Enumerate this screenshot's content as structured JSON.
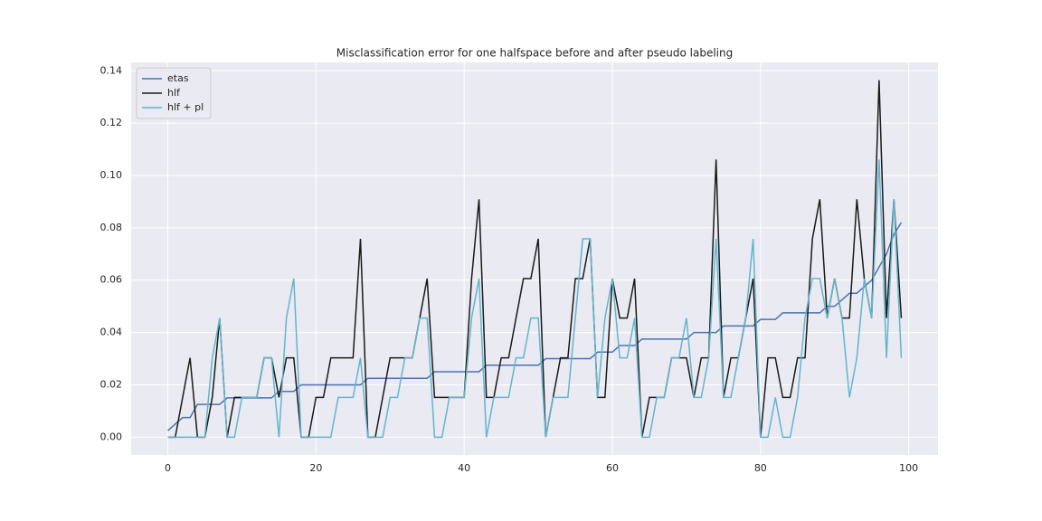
{
  "chart_data": {
    "type": "line",
    "title": "Misclassification error for one halfspace before and after pseudo labeling",
    "x": [
      0,
      1,
      2,
      3,
      4,
      5,
      6,
      7,
      8,
      9,
      10,
      11,
      12,
      13,
      14,
      15,
      16,
      17,
      18,
      19,
      20,
      21,
      22,
      23,
      24,
      25,
      26,
      27,
      28,
      29,
      30,
      31,
      32,
      33,
      34,
      35,
      36,
      37,
      38,
      39,
      40,
      41,
      42,
      43,
      44,
      45,
      46,
      47,
      48,
      49,
      50,
      51,
      52,
      53,
      54,
      55,
      56,
      57,
      58,
      59,
      60,
      61,
      62,
      63,
      64,
      65,
      66,
      67,
      68,
      69,
      70,
      71,
      72,
      73,
      74,
      75,
      76,
      77,
      78,
      79,
      80,
      81,
      82,
      83,
      84,
      85,
      86,
      87,
      88,
      89,
      90,
      91,
      92,
      93,
      94,
      95,
      96,
      97,
      98,
      99
    ],
    "series": [
      {
        "name": "etas",
        "color": "#4c72b0",
        "values": [
          0.0025,
          0.005,
          0.0075,
          0.0075,
          0.0125,
          0.0125,
          0.0125,
          0.0125,
          0.015,
          0.015,
          0.015,
          0.015,
          0.015,
          0.015,
          0.015,
          0.0175,
          0.0175,
          0.0175,
          0.02,
          0.02,
          0.02,
          0.02,
          0.02,
          0.02,
          0.02,
          0.02,
          0.02,
          0.0225,
          0.0225,
          0.0225,
          0.0225,
          0.0225,
          0.0225,
          0.0225,
          0.0225,
          0.0225,
          0.025,
          0.025,
          0.025,
          0.025,
          0.025,
          0.025,
          0.025,
          0.0275,
          0.0275,
          0.0275,
          0.0275,
          0.0275,
          0.0275,
          0.0275,
          0.0275,
          0.03,
          0.03,
          0.03,
          0.03,
          0.03,
          0.03,
          0.03,
          0.0325,
          0.0325,
          0.0325,
          0.035,
          0.035,
          0.035,
          0.0375,
          0.0375,
          0.0375,
          0.0375,
          0.0375,
          0.0375,
          0.0375,
          0.04,
          0.04,
          0.04,
          0.04,
          0.0425,
          0.0425,
          0.0425,
          0.0425,
          0.0425,
          0.045,
          0.045,
          0.045,
          0.0475,
          0.0475,
          0.0475,
          0.0475,
          0.0475,
          0.0475,
          0.05,
          0.05,
          0.0525,
          0.055,
          0.055,
          0.0575,
          0.06,
          0.065,
          0.07,
          0.0775,
          0.082
        ]
      },
      {
        "name": "hlf",
        "color": "#1a1a1a",
        "values": [
          0,
          0,
          0.0152,
          0.0303,
          0,
          0,
          0.0152,
          0.0455,
          0,
          0.0152,
          0.0152,
          0.0152,
          0.0152,
          0.0303,
          0.0303,
          0.0152,
          0.0303,
          0.0303,
          0,
          0,
          0.0152,
          0.0152,
          0.0303,
          0.0303,
          0.0303,
          0.0303,
          0.0758,
          0,
          0,
          0.0152,
          0.0303,
          0.0303,
          0.0303,
          0.0303,
          0.0455,
          0.0606,
          0.0152,
          0.0152,
          0.0152,
          0.0152,
          0.0152,
          0.0606,
          0.0909,
          0.0152,
          0.0152,
          0.0303,
          0.0303,
          0.0455,
          0.0606,
          0.0606,
          0.0758,
          0,
          0.0152,
          0.0303,
          0.0303,
          0.0606,
          0.0606,
          0.0758,
          0.0152,
          0.0152,
          0.0606,
          0.0455,
          0.0455,
          0.0606,
          0,
          0.0152,
          0.0152,
          0.0152,
          0.0303,
          0.0303,
          0.0303,
          0.0152,
          0.0303,
          0.0303,
          0.1061,
          0.0152,
          0.0303,
          0.0303,
          0.0455,
          0.0606,
          0,
          0.0303,
          0.0303,
          0.0152,
          0.0152,
          0.0303,
          0.0303,
          0.0758,
          0.0909,
          0.0455,
          0.0606,
          0.0455,
          0.0455,
          0.0909,
          0.0606,
          0.0455,
          0.1364,
          0.0455,
          0.0909,
          0.0455
        ]
      },
      {
        "name": "hlf + pl",
        "color": "#64b5cd",
        "values": [
          0,
          0,
          0,
          0,
          0,
          0,
          0.0303,
          0.0455,
          0,
          0,
          0.0152,
          0.0152,
          0.0152,
          0.0303,
          0.0303,
          0,
          0.0455,
          0.0606,
          0,
          0,
          0,
          0,
          0,
          0.0152,
          0.0152,
          0.0152,
          0.0303,
          0,
          0,
          0,
          0.0152,
          0.0152,
          0.0303,
          0.0303,
          0.0455,
          0.0455,
          0,
          0,
          0.0152,
          0.0152,
          0.0152,
          0.0455,
          0.0606,
          0,
          0.0152,
          0.0152,
          0.0152,
          0.0303,
          0.0303,
          0.0455,
          0.0455,
          0,
          0.0152,
          0.0152,
          0.0152,
          0.0455,
          0.0758,
          0.0758,
          0.0152,
          0.0455,
          0.0606,
          0.0303,
          0.0303,
          0.0455,
          0,
          0,
          0.0152,
          0.0152,
          0.0303,
          0.0303,
          0.0455,
          0.0152,
          0.0152,
          0.0303,
          0.0758,
          0.0152,
          0.0152,
          0.0303,
          0.0455,
          0.0758,
          0,
          0,
          0.0152,
          0,
          0,
          0.0152,
          0.0455,
          0.0606,
          0.0606,
          0.0455,
          0.0606,
          0.0455,
          0.0152,
          0.0303,
          0.0606,
          0.0455,
          0.1061,
          0.0303,
          0.0909,
          0.0303
        ]
      }
    ],
    "xlim": [
      -4.95,
      103.95
    ],
    "xticks": [
      0,
      20,
      40,
      60,
      80,
      100
    ],
    "ylim": [
      -0.0068,
      0.1432
    ],
    "yticks": [
      {
        "value": 0,
        "label": "0.00"
      },
      {
        "value": 0.02,
        "label": "0.02"
      },
      {
        "value": 0.04,
        "label": "0.04"
      },
      {
        "value": 0.06,
        "label": "0.06"
      },
      {
        "value": 0.08,
        "label": "0.08"
      },
      {
        "value": 0.1,
        "label": "0.10"
      },
      {
        "value": 0.12,
        "label": "0.12"
      },
      {
        "value": 0.14,
        "label": "0.14"
      }
    ],
    "grid": true,
    "legend": "upper left"
  }
}
